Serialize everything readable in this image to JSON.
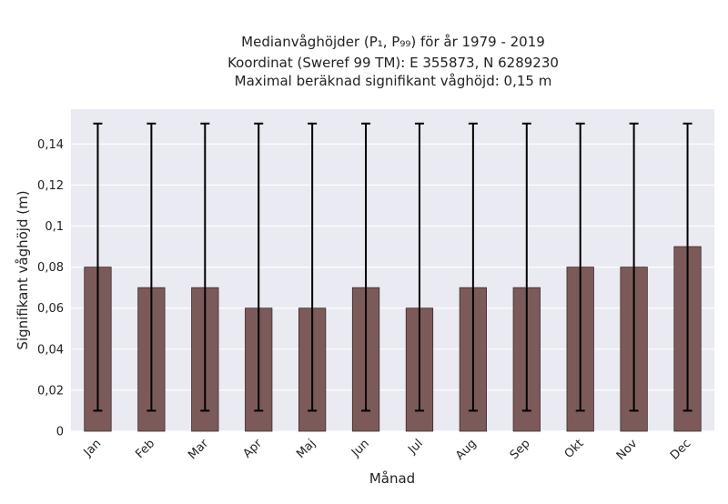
{
  "chart_data": {
    "type": "bar",
    "title_lines": [
      "Medianvåghöjder (P₁, P₉₉) för år 1979 - 2019",
      "Koordinat (Sweref 99 TM): E 355873, N 6289230",
      "Maximal beräknad signifikant våghöjd: 0,15 m"
    ],
    "xlabel": "Månad",
    "ylabel": "Signifikant våghöjd (m)",
    "categories": [
      "Jan",
      "Feb",
      "Mar",
      "Apr",
      "Maj",
      "Jun",
      "Jul",
      "Aug",
      "Sep",
      "Okt",
      "Nov",
      "Dec"
    ],
    "values": [
      0.08,
      0.07,
      0.07,
      0.06,
      0.06,
      0.07,
      0.06,
      0.07,
      0.07,
      0.08,
      0.08,
      0.09
    ],
    "error_low": [
      0.01,
      0.01,
      0.01,
      0.01,
      0.01,
      0.01,
      0.01,
      0.01,
      0.01,
      0.01,
      0.01,
      0.01
    ],
    "error_high": [
      0.15,
      0.15,
      0.15,
      0.15,
      0.15,
      0.15,
      0.15,
      0.15,
      0.15,
      0.15,
      0.15,
      0.15
    ],
    "ylim": [
      0,
      0.157
    ],
    "yticks": [
      0,
      0.02,
      0.04,
      0.06,
      0.08,
      0.1,
      0.12,
      0.14
    ],
    "ytick_labels": [
      "0",
      "0,02",
      "0,04",
      "0,06",
      "0,08",
      "0,1",
      "0,12",
      "0,14"
    ],
    "grid": true,
    "colors": {
      "bar": "#7d5a5a",
      "bar_edge": "#3a2a2a",
      "error_bar": "#000000",
      "plot_background": "#eaeaf2",
      "grid": "#ffffff"
    }
  }
}
